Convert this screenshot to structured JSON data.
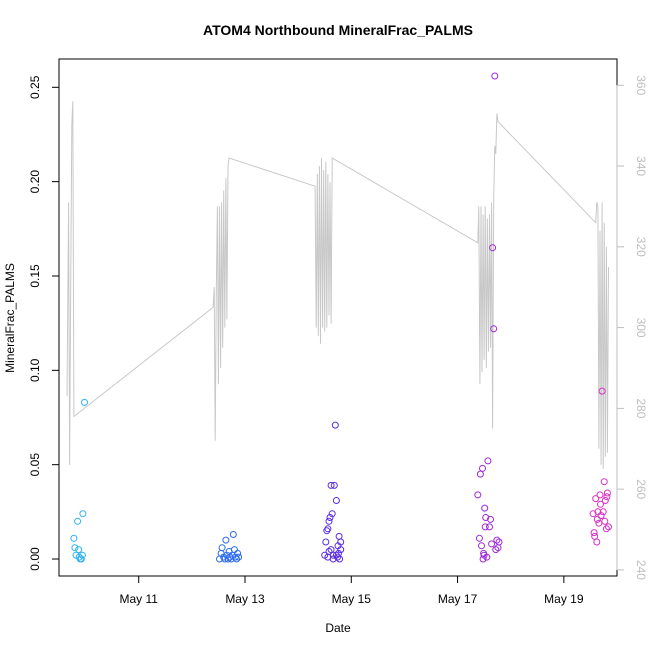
{
  "chart_data": {
    "type": "scatter",
    "title": "ATOM4 Northbound MineralFrac_PALMS",
    "xlabel": "Date",
    "ylabel": "MineralFrac_PALMS",
    "ylabel_right": "",
    "x_ticks": [
      "May 11",
      "May 13",
      "May 15",
      "May 17",
      "May 19"
    ],
    "y_ticks": [
      "0.00",
      "0.05",
      "0.10",
      "0.15",
      "0.20",
      "0.25"
    ],
    "y2_ticks": [
      "240",
      "260",
      "280",
      "300",
      "320",
      "340",
      "360"
    ],
    "xlim": [
      9.5,
      20.0
    ],
    "ylim": [
      -0.009,
      0.265
    ],
    "y2lim": [
      238.5,
      366.5
    ],
    "colors": {
      "line": "#c8c8c8",
      "right_axis": "#bebebe",
      "point_palette": [
        "#2fb2f0",
        "#2c6cf0",
        "#5a2ce8",
        "#a02ad8",
        "#d830c4"
      ]
    },
    "series": [
      {
        "values": [
          [
            9.78,
            0.011
          ],
          [
            9.8,
            0.006
          ],
          [
            9.82,
            0.002
          ],
          [
            9.85,
            0.02
          ],
          [
            9.87,
            0.005
          ],
          [
            9.88,
            0.001
          ],
          [
            9.9,
            0.0
          ],
          [
            9.92,
            0.0
          ],
          [
            9.94,
            0.002
          ],
          [
            9.95,
            0.024
          ],
          [
            9.98,
            0.083
          ],
          [
            12.52,
            0.0
          ],
          [
            12.55,
            0.003
          ],
          [
            12.57,
            0.006
          ],
          [
            12.6,
            0.001
          ],
          [
            12.62,
            0.0
          ],
          [
            12.64,
            0.01
          ],
          [
            12.66,
            0.002
          ],
          [
            12.68,
            0.0
          ],
          [
            12.7,
            0.004
          ],
          [
            12.72,
            0.001
          ],
          [
            12.74,
            0.0
          ],
          [
            12.76,
            0.002
          ],
          [
            12.78,
            0.013
          ],
          [
            12.8,
            0.005
          ],
          [
            12.82,
            0.001
          ],
          [
            12.84,
            0.0
          ],
          [
            12.86,
            0.003
          ],
          [
            12.88,
            0.001
          ],
          [
            14.5,
            0.002
          ],
          [
            14.52,
            0.009
          ],
          [
            14.54,
            0.015
          ],
          [
            14.56,
            0.001
          ],
          [
            14.58,
            0.02
          ],
          [
            14.6,
            0.022
          ],
          [
            14.62,
            0.005
          ],
          [
            14.64,
            0.024
          ],
          [
            14.66,
            0.0
          ],
          [
            14.68,
            0.039
          ],
          [
            14.7,
            0.071
          ],
          [
            14.72,
            0.031
          ],
          [
            14.74,
            0.001
          ],
          [
            14.75,
            0.007
          ],
          [
            14.77,
            0.012
          ],
          [
            14.78,
            0.0
          ],
          [
            14.8,
            0.005
          ],
          [
            14.62,
            0.039
          ],
          [
            14.58,
            0.004
          ],
          [
            14.56,
            0.016
          ],
          [
            14.66,
            0.002
          ],
          [
            14.72,
            0.002
          ],
          [
            14.8,
            0.009
          ],
          [
            14.76,
            0.003
          ],
          [
            17.38,
            0.034
          ],
          [
            17.41,
            0.011
          ],
          [
            17.43,
            0.045
          ],
          [
            17.45,
            0.007
          ],
          [
            17.47,
            0.048
          ],
          [
            17.49,
            0.003
          ],
          [
            17.51,
            0.027
          ],
          [
            17.53,
            0.022
          ],
          [
            17.55,
            0.001
          ],
          [
            17.57,
            0.052
          ],
          [
            17.6,
            0.017
          ],
          [
            17.62,
            0.021
          ],
          [
            17.64,
            0.008
          ],
          [
            17.66,
            0.165
          ],
          [
            17.68,
            0.122
          ],
          [
            17.7,
            0.256
          ],
          [
            17.72,
            0.005
          ],
          [
            17.74,
            0.01
          ],
          [
            17.76,
            0.006
          ],
          [
            17.78,
            0.009
          ],
          [
            17.52,
            0.017
          ],
          [
            17.48,
            0.0
          ],
          [
            17.5,
            0.002
          ],
          [
            19.55,
            0.024
          ],
          [
            19.58,
            0.012
          ],
          [
            19.6,
            0.032
          ],
          [
            19.62,
            0.009
          ],
          [
            19.64,
            0.025
          ],
          [
            19.66,
            0.019
          ],
          [
            19.68,
            0.034
          ],
          [
            19.7,
            0.023
          ],
          [
            19.72,
            0.089
          ],
          [
            19.74,
            0.025
          ],
          [
            19.76,
            0.041
          ],
          [
            19.78,
            0.031
          ],
          [
            19.8,
            0.016
          ],
          [
            19.82,
            0.035
          ],
          [
            19.84,
            0.017
          ],
          [
            19.57,
            0.014
          ],
          [
            19.63,
            0.021
          ],
          [
            19.69,
            0.029
          ],
          [
            19.77,
            0.02
          ],
          [
            19.81,
            0.033
          ]
        ]
      },
      {
        "axis": "right",
        "values": [
          [
            9.65,
            283
          ],
          [
            9.68,
            331
          ],
          [
            9.7,
            266
          ],
          [
            9.72,
            310
          ],
          [
            9.74,
            350
          ],
          [
            9.76,
            356
          ],
          [
            9.78,
            278
          ],
          [
            12.4,
            305
          ],
          [
            12.42,
            310
          ],
          [
            12.44,
            272
          ],
          [
            12.46,
            309
          ],
          [
            12.48,
            330
          ],
          [
            12.5,
            286
          ],
          [
            12.52,
            330
          ],
          [
            12.54,
            290
          ],
          [
            12.56,
            331
          ],
          [
            12.58,
            295
          ],
          [
            12.6,
            334
          ],
          [
            12.62,
            300
          ],
          [
            12.64,
            337
          ],
          [
            12.66,
            302
          ],
          [
            12.68,
            340
          ],
          [
            12.7,
            342
          ],
          [
            14.32,
            335
          ],
          [
            14.34,
            300
          ],
          [
            14.36,
            338
          ],
          [
            14.38,
            298
          ],
          [
            14.4,
            340
          ],
          [
            14.42,
            296
          ],
          [
            14.44,
            342
          ],
          [
            14.46,
            300
          ],
          [
            14.48,
            339
          ],
          [
            14.5,
            299
          ],
          [
            14.52,
            341
          ],
          [
            14.54,
            300
          ],
          [
            14.56,
            338
          ],
          [
            14.58,
            303
          ],
          [
            14.6,
            336
          ],
          [
            14.62,
            301
          ],
          [
            14.64,
            342
          ],
          [
            17.38,
            321
          ],
          [
            17.4,
            330
          ],
          [
            17.42,
            286
          ],
          [
            17.44,
            330
          ],
          [
            17.46,
            289
          ],
          [
            17.48,
            328
          ],
          [
            17.5,
            292
          ],
          [
            17.52,
            330
          ],
          [
            17.54,
            290
          ],
          [
            17.56,
            327
          ],
          [
            17.58,
            294
          ],
          [
            17.6,
            328
          ],
          [
            17.62,
            295
          ],
          [
            17.64,
            331
          ],
          [
            17.66,
            275
          ],
          [
            17.68,
            332
          ],
          [
            17.7,
            345
          ],
          [
            17.72,
            343
          ],
          [
            17.74,
            353
          ],
          [
            17.76,
            351
          ],
          [
            19.6,
            326
          ],
          [
            19.62,
            331
          ],
          [
            19.64,
            330
          ],
          [
            19.66,
            270
          ],
          [
            19.68,
            324
          ],
          [
            19.7,
            266
          ],
          [
            19.72,
            331
          ],
          [
            19.74,
            265
          ],
          [
            19.76,
            326
          ],
          [
            19.78,
            268
          ],
          [
            19.8,
            320
          ],
          [
            19.82,
            269
          ],
          [
            19.84,
            315
          ]
        ]
      }
    ]
  }
}
